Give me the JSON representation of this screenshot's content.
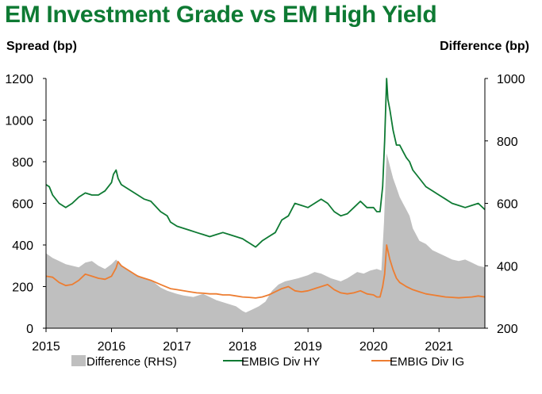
{
  "chart_data": {
    "type": "line",
    "title": "EM Investment Grade vs EM High Yield",
    "ylabel_left": "Spread (bp)",
    "ylabel_right": "Difference (bp)",
    "ylim_left": [
      0,
      1200
    ],
    "ylim_right": [
      200,
      1000
    ],
    "yticks_left": [
      "0",
      "200",
      "400",
      "600",
      "800",
      "1000",
      "1200"
    ],
    "yticks_right": [
      "200",
      "400",
      "600",
      "800",
      "1000"
    ],
    "xlim": [
      2015.0,
      2021.7
    ],
    "xticks": [
      "2015",
      "2016",
      "2017",
      "2018",
      "2019",
      "2020",
      "2021"
    ],
    "grid": false,
    "legend_position": "bottom",
    "series": [
      {
        "name": "Difference (RHS)",
        "kind": "area",
        "axis": "right",
        "color": "#bfbfbf",
        "x": [
          2015.0,
          2015.1,
          2015.2,
          2015.3,
          2015.4,
          2015.5,
          2015.6,
          2015.7,
          2015.8,
          2015.9,
          2016.0,
          2016.07,
          2016.15,
          2016.25,
          2016.35,
          2016.5,
          2016.6,
          2016.75,
          2016.85,
          2017.0,
          2017.1,
          2017.25,
          2017.4,
          2017.5,
          2017.6,
          2017.75,
          2017.9,
          2018.0,
          2018.05,
          2018.15,
          2018.25,
          2018.35,
          2018.45,
          2018.55,
          2018.65,
          2018.75,
          2018.85,
          2019.0,
          2019.1,
          2019.2,
          2019.35,
          2019.5,
          2019.6,
          2019.75,
          2019.85,
          2019.95,
          2020.05,
          2020.12,
          2020.16,
          2020.2,
          2020.25,
          2020.3,
          2020.35,
          2020.4,
          2020.45,
          2020.5,
          2020.55,
          2020.6,
          2020.7,
          2020.8,
          2020.9,
          2021.0,
          2021.1,
          2021.2,
          2021.3,
          2021.4,
          2021.5,
          2021.6,
          2021.7
        ],
        "values": [
          440,
          425,
          415,
          405,
          400,
          395,
          410,
          415,
          400,
          390,
          405,
          420,
          400,
          385,
          375,
          360,
          355,
          330,
          320,
          310,
          305,
          300,
          310,
          300,
          290,
          280,
          270,
          255,
          250,
          260,
          270,
          285,
          320,
          340,
          350,
          355,
          360,
          370,
          380,
          375,
          360,
          350,
          360,
          380,
          375,
          385,
          390,
          385,
          540,
          760,
          720,
          680,
          650,
          620,
          600,
          580,
          560,
          520,
          480,
          470,
          450,
          440,
          430,
          420,
          415,
          420,
          410,
          400,
          395
        ]
      },
      {
        "name": "EMBIG Div HY",
        "kind": "line",
        "axis": "left",
        "color": "#0e7a33",
        "x": [
          2015.0,
          2015.05,
          2015.1,
          2015.2,
          2015.3,
          2015.4,
          2015.5,
          2015.6,
          2015.7,
          2015.8,
          2015.9,
          2016.0,
          2016.03,
          2016.07,
          2016.1,
          2016.15,
          2016.2,
          2016.3,
          2016.4,
          2016.5,
          2016.6,
          2016.75,
          2016.85,
          2016.9,
          2017.0,
          2017.1,
          2017.2,
          2017.3,
          2017.4,
          2017.5,
          2017.6,
          2017.7,
          2017.8,
          2017.9,
          2018.0,
          2018.05,
          2018.1,
          2018.2,
          2018.3,
          2018.4,
          2018.5,
          2018.6,
          2018.7,
          2018.8,
          2018.9,
          2019.0,
          2019.1,
          2019.2,
          2019.3,
          2019.4,
          2019.5,
          2019.6,
          2019.7,
          2019.8,
          2019.9,
          2020.0,
          2020.05,
          2020.1,
          2020.14,
          2020.17,
          2020.2,
          2020.22,
          2020.25,
          2020.3,
          2020.35,
          2020.4,
          2020.45,
          2020.5,
          2020.55,
          2020.6,
          2020.7,
          2020.8,
          2020.9,
          2021.0,
          2021.1,
          2021.2,
          2021.3,
          2021.4,
          2021.5,
          2021.6,
          2021.7
        ],
        "values": [
          690,
          680,
          640,
          600,
          580,
          600,
          630,
          650,
          640,
          640,
          660,
          700,
          740,
          760,
          720,
          690,
          680,
          660,
          640,
          620,
          610,
          560,
          540,
          510,
          490,
          480,
          470,
          460,
          450,
          440,
          450,
          460,
          450,
          440,
          430,
          420,
          410,
          390,
          420,
          440,
          460,
          520,
          540,
          600,
          590,
          580,
          600,
          620,
          600,
          560,
          540,
          550,
          580,
          610,
          580,
          580,
          560,
          560,
          680,
          900,
          1200,
          1100,
          1050,
          950,
          880,
          880,
          850,
          820,
          800,
          760,
          720,
          680,
          660,
          640,
          620,
          600,
          590,
          580,
          590,
          600,
          570
        ]
      },
      {
        "name": "EMBIG Div IG",
        "kind": "line",
        "axis": "left",
        "color": "#ed7d31",
        "x": [
          2015.0,
          2015.1,
          2015.2,
          2015.3,
          2015.4,
          2015.5,
          2015.6,
          2015.7,
          2015.8,
          2015.9,
          2016.0,
          2016.07,
          2016.1,
          2016.15,
          2016.2,
          2016.3,
          2016.4,
          2016.5,
          2016.6,
          2016.75,
          2016.9,
          2017.0,
          2017.1,
          2017.2,
          2017.3,
          2017.4,
          2017.5,
          2017.6,
          2017.7,
          2017.8,
          2017.9,
          2018.0,
          2018.1,
          2018.2,
          2018.3,
          2018.4,
          2018.5,
          2018.6,
          2018.7,
          2018.8,
          2018.9,
          2019.0,
          2019.1,
          2019.2,
          2019.3,
          2019.4,
          2019.5,
          2019.6,
          2019.7,
          2019.8,
          2019.9,
          2020.0,
          2020.05,
          2020.1,
          2020.14,
          2020.17,
          2020.2,
          2020.25,
          2020.3,
          2020.35,
          2020.4,
          2020.5,
          2020.6,
          2020.7,
          2020.8,
          2020.9,
          2021.0,
          2021.1,
          2021.2,
          2021.3,
          2021.4,
          2021.5,
          2021.6,
          2021.7
        ],
        "values": [
          250,
          245,
          220,
          205,
          210,
          230,
          260,
          250,
          240,
          235,
          250,
          290,
          320,
          300,
          290,
          270,
          250,
          240,
          230,
          210,
          190,
          185,
          180,
          175,
          170,
          168,
          165,
          165,
          160,
          160,
          155,
          150,
          148,
          145,
          150,
          160,
          175,
          190,
          200,
          180,
          175,
          180,
          190,
          200,
          210,
          185,
          170,
          165,
          170,
          180,
          165,
          160,
          150,
          150,
          200,
          260,
          400,
          330,
          280,
          240,
          220,
          200,
          185,
          175,
          165,
          160,
          155,
          150,
          148,
          146,
          148,
          150,
          155,
          150
        ]
      }
    ]
  }
}
